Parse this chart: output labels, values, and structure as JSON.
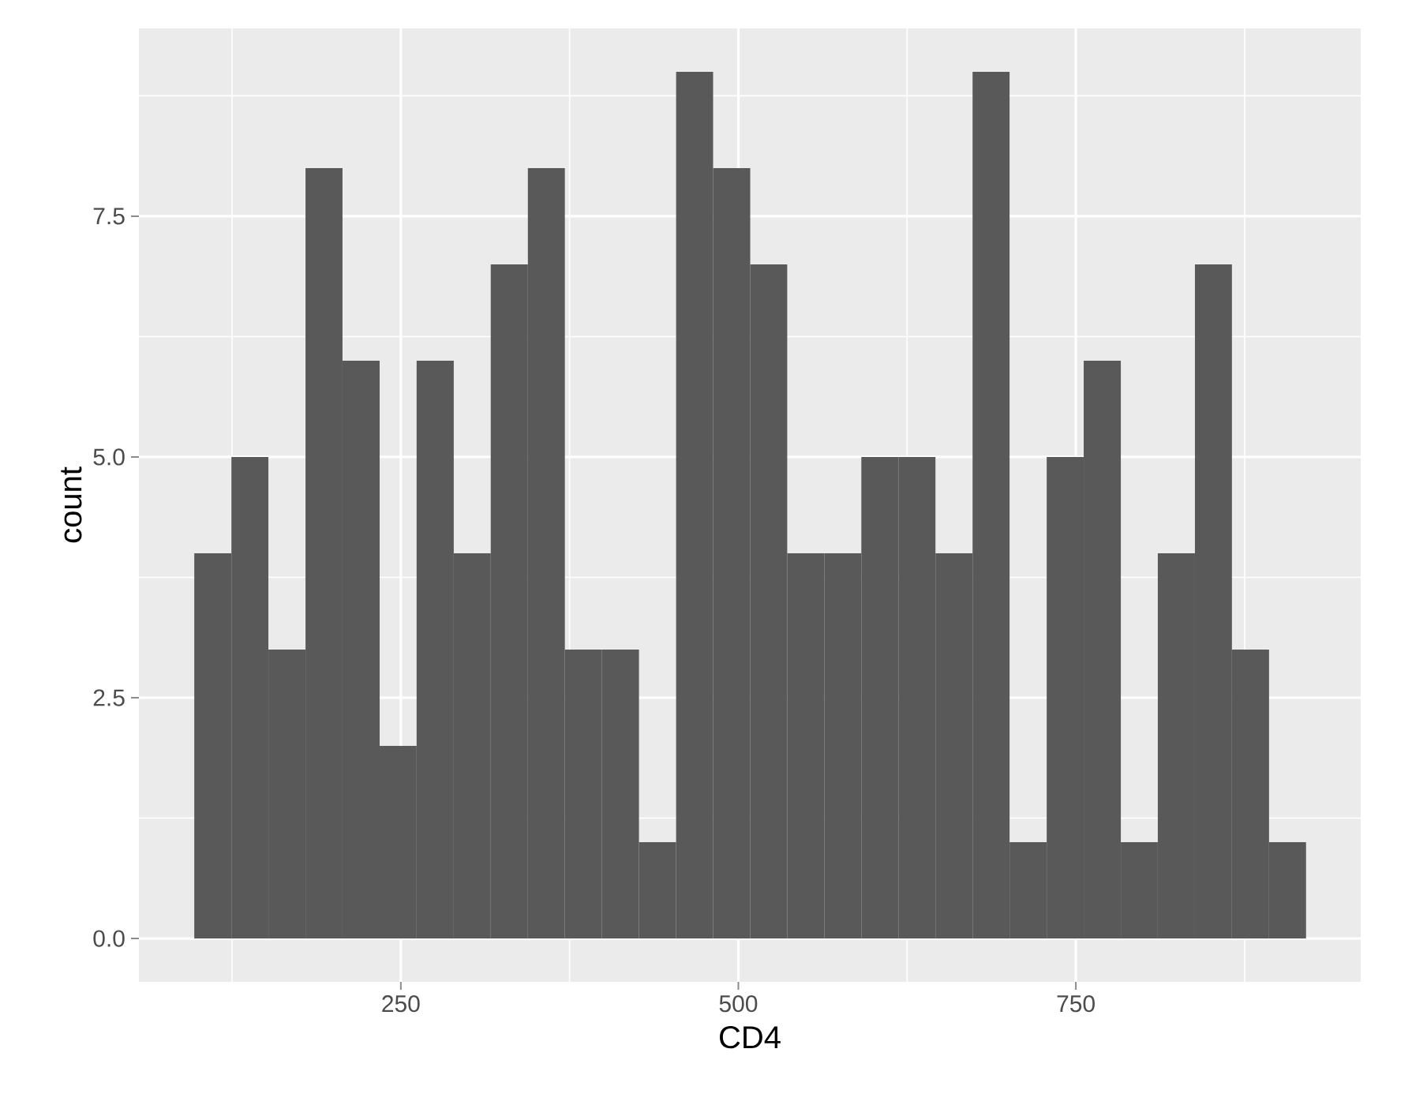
{
  "chart_data": {
    "type": "histogram",
    "xlabel": "CD4",
    "ylabel": "count",
    "bins": [
      97.0,
      124.5,
      151.9,
      179.4,
      206.8,
      234.3,
      261.7,
      289.2,
      316.6,
      344.1,
      371.5,
      399.0,
      426.4,
      453.9,
      481.3,
      508.8,
      536.2,
      563.7,
      591.1,
      618.6,
      646.0,
      673.5,
      700.9,
      728.4,
      755.8,
      783.3,
      810.7,
      838.2,
      865.6,
      893.1,
      920.5
    ],
    "values": [
      4,
      5,
      3,
      8,
      6,
      2,
      6,
      4,
      7,
      8,
      3,
      3,
      1,
      9,
      8,
      7,
      4,
      4,
      5,
      5,
      4,
      9,
      1,
      5,
      6,
      1,
      4,
      7,
      3,
      1
    ],
    "color": "#595959",
    "xlim": [
      56,
      961
    ],
    "ylim": [
      -0.45,
      9.45
    ],
    "xticks": [
      250,
      500,
      750
    ],
    "yticks": [
      {
        "value": 0,
        "label": "0.0"
      },
      {
        "value": 2.5,
        "label": "2.5"
      },
      {
        "value": 5,
        "label": "5.0"
      },
      {
        "value": 7.5,
        "label": "7.5"
      }
    ],
    "grid": true
  }
}
